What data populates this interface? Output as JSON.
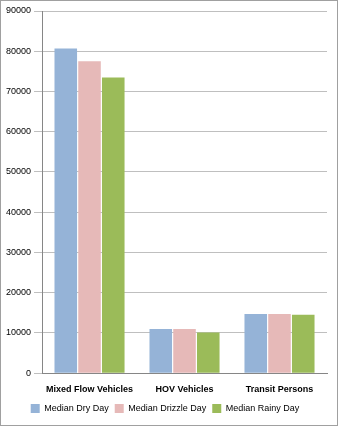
{
  "chart_data": {
    "type": "bar",
    "categories": [
      "Mixed Flow Vehicles",
      "HOV Vehicles",
      "Transit Persons"
    ],
    "series": [
      {
        "name": "Median Dry Day",
        "color": "#95b3d7",
        "values": [
          80700,
          11000,
          14700
        ]
      },
      {
        "name": "Median Drizzle Day",
        "color": "#e6b9b8",
        "values": [
          77500,
          11000,
          14700
        ]
      },
      {
        "name": "Median Rainy Day",
        "color": "#9bbb59",
        "values": [
          73500,
          10100,
          14500
        ]
      }
    ],
    "ylim": [
      0,
      90000
    ],
    "yticks": [
      0,
      10000,
      20000,
      30000,
      40000,
      50000,
      60000,
      70000,
      80000,
      90000
    ],
    "grid": true,
    "legend": "bottom"
  }
}
